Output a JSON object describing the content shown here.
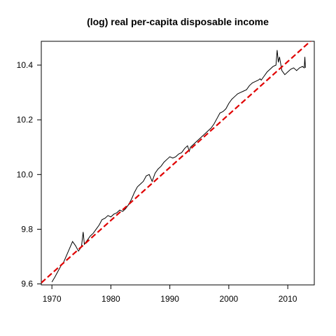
{
  "chart_data": {
    "type": "line",
    "title": "(log) real per-capita disposable income",
    "xlabel": "",
    "ylabel": "",
    "xlim": [
      1968.2,
      2014.5
    ],
    "ylim": [
      9.5965,
      10.487
    ],
    "x_ticks": [
      1970,
      1980,
      1990,
      2000,
      2010
    ],
    "x_tick_labels": [
      "1970",
      "1980",
      "1990",
      "2000",
      "2010"
    ],
    "y_ticks": [
      9.6,
      9.8,
      10.0,
      10.2,
      10.4
    ],
    "y_tick_labels": [
      "9.6",
      "9.8",
      "10.0",
      "10.2",
      "10.4"
    ],
    "grid": false,
    "series": [
      {
        "style": "solid",
        "color": "#000000",
        "x": [
          1970.0,
          1970.5,
          1971.0,
          1971.5,
          1972.0,
          1972.5,
          1973.0,
          1973.5,
          1974.0,
          1974.5,
          1975.0,
          1975.3,
          1975.5,
          1976.0,
          1976.5,
          1977.0,
          1977.5,
          1978.0,
          1978.5,
          1979.0,
          1979.5,
          1980.0,
          1980.5,
          1981.0,
          1981.5,
          1982.0,
          1982.5,
          1983.0,
          1983.5,
          1984.0,
          1984.5,
          1985.0,
          1985.5,
          1986.0,
          1986.5,
          1987.0,
          1987.5,
          1988.0,
          1988.5,
          1989.0,
          1989.5,
          1990.0,
          1990.5,
          1991.0,
          1991.5,
          1992.0,
          1992.5,
          1993.0,
          1993.3,
          1993.5,
          1994.0,
          1994.5,
          1995.0,
          1995.5,
          1996.0,
          1996.5,
          1997.0,
          1997.5,
          1998.0,
          1998.5,
          1999.0,
          1999.5,
          2000.0,
          2000.5,
          2001.0,
          2001.5,
          2002.0,
          2002.5,
          2003.0,
          2003.5,
          2004.0,
          2004.5,
          2005.0,
          2005.3,
          2005.5,
          2006.0,
          2006.5,
          2007.0,
          2007.5,
          2008.0,
          2008.2,
          2008.4,
          2008.6,
          2009.0,
          2009.5,
          2010.0,
          2010.5,
          2011.0,
          2011.5,
          2012.0,
          2012.5,
          2012.8,
          2012.9,
          2013.0
        ],
        "y": [
          9.607,
          9.625,
          9.645,
          9.665,
          9.68,
          9.705,
          9.73,
          9.755,
          9.74,
          9.72,
          9.735,
          9.79,
          9.745,
          9.76,
          9.775,
          9.785,
          9.8,
          9.815,
          9.835,
          9.84,
          9.85,
          9.845,
          9.855,
          9.86,
          9.87,
          9.865,
          9.875,
          9.89,
          9.91,
          9.935,
          9.955,
          9.965,
          9.975,
          9.995,
          10.0,
          9.975,
          10.005,
          10.02,
          10.03,
          10.045,
          10.055,
          10.065,
          10.06,
          10.065,
          10.075,
          10.08,
          10.095,
          10.105,
          10.085,
          10.1,
          10.11,
          10.12,
          10.13,
          10.14,
          10.15,
          10.16,
          10.17,
          10.185,
          10.205,
          10.225,
          10.23,
          10.24,
          10.26,
          10.275,
          10.285,
          10.295,
          10.3,
          10.305,
          10.31,
          10.325,
          10.335,
          10.34,
          10.345,
          10.35,
          10.345,
          10.36,
          10.375,
          10.385,
          10.395,
          10.4,
          10.455,
          10.41,
          10.43,
          10.38,
          10.365,
          10.375,
          10.385,
          10.39,
          10.38,
          10.39,
          10.395,
          10.39,
          10.43,
          10.39
        ]
      },
      {
        "style": "dashed",
        "color": "#e00000",
        "x": [
          1968.2,
          2014.5
        ],
        "y": [
          9.604,
          10.5
        ]
      }
    ]
  }
}
